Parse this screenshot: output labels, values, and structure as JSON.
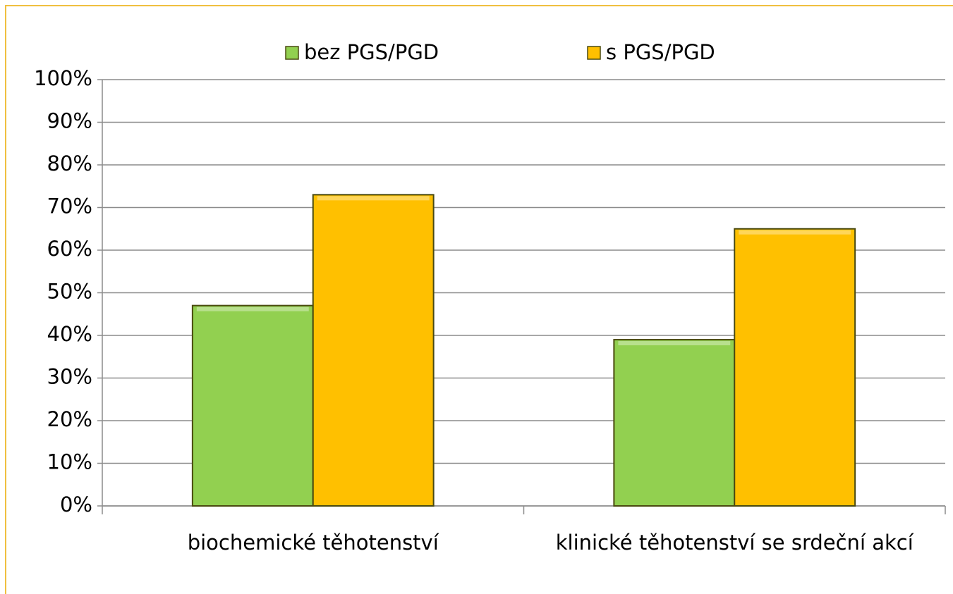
{
  "chart_data": {
    "type": "bar",
    "categories": [
      "biochemické těhotenství",
      "klinické těhotenství se srdeční akcí"
    ],
    "series": [
      {
        "name": "bez PGS/PGD",
        "color": "#92d050",
        "values": [
          47,
          39
        ]
      },
      {
        "name": "s PGS/PGD",
        "color": "#ffc000",
        "values": [
          73,
          65
        ]
      }
    ],
    "ylim": [
      0,
      100
    ],
    "yticks": [
      {
        "value": 0,
        "label": "0%"
      },
      {
        "value": 10,
        "label": "10%"
      },
      {
        "value": 20,
        "label": "20%"
      },
      {
        "value": 30,
        "label": "30%"
      },
      {
        "value": 40,
        "label": "40%"
      },
      {
        "value": 50,
        "label": "50%"
      },
      {
        "value": 60,
        "label": "60%"
      },
      {
        "value": 70,
        "label": "70%"
      },
      {
        "value": 80,
        "label": "80%"
      },
      {
        "value": 90,
        "label": "90%"
      },
      {
        "value": 100,
        "label": "100%"
      }
    ],
    "grid": true,
    "legend": "top"
  }
}
